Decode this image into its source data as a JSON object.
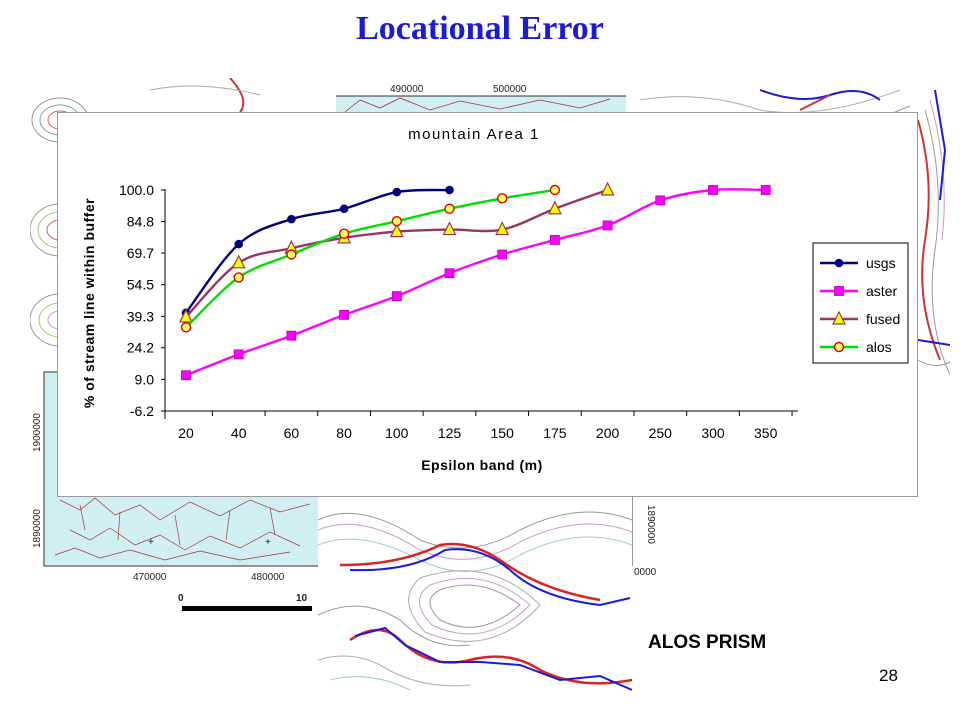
{
  "slide": {
    "title": "Locational Error",
    "subtitle_label": "ALOS PRISM",
    "page_number": "28"
  },
  "maps": {
    "top_coords": [
      "490000",
      "500000"
    ],
    "left_map_y_coords": [
      "1900000",
      "1890000"
    ],
    "left_map_x_coords": [
      "470000",
      "480000"
    ],
    "right_map_y_coord": "1890000",
    "right_map_x_coord": "0000",
    "scale_labels": [
      "0",
      "10"
    ]
  },
  "chart_data": {
    "type": "line",
    "title": "mountain Area 1",
    "xlabel": "Epsilon band (m)",
    "ylabel": "% of stream line within buffer",
    "categories": [
      "20",
      "40",
      "60",
      "80",
      "100",
      "125",
      "150",
      "175",
      "200",
      "250",
      "300",
      "350"
    ],
    "yticks": [
      "100.0",
      "84.8",
      "69.7",
      "54.5",
      "39.3",
      "24.2",
      "9.0",
      "-6.2"
    ],
    "ylim": [
      -6.2,
      100.0
    ],
    "legend_position": "right",
    "grid": false,
    "series": [
      {
        "name": "usgs",
        "color": "#000080",
        "marker": "circle",
        "values": [
          41,
          74,
          86,
          91,
          99,
          100,
          null,
          null,
          null,
          null,
          null,
          null
        ]
      },
      {
        "name": "aster",
        "color": "#ff00ff",
        "marker": "square",
        "values": [
          11,
          21,
          30,
          40,
          49,
          60,
          69,
          76,
          83,
          95,
          100,
          100
        ]
      },
      {
        "name": "fused",
        "color": "#993366",
        "marker": "triangle",
        "values": [
          39,
          65,
          72,
          77,
          80,
          81,
          81,
          91,
          100,
          null,
          null,
          null
        ]
      },
      {
        "name": "alos",
        "color": "#00dd00",
        "marker": "ring",
        "values": [
          34,
          58,
          69,
          79,
          85,
          91,
          96,
          100,
          null,
          null,
          null,
          null
        ]
      }
    ]
  }
}
